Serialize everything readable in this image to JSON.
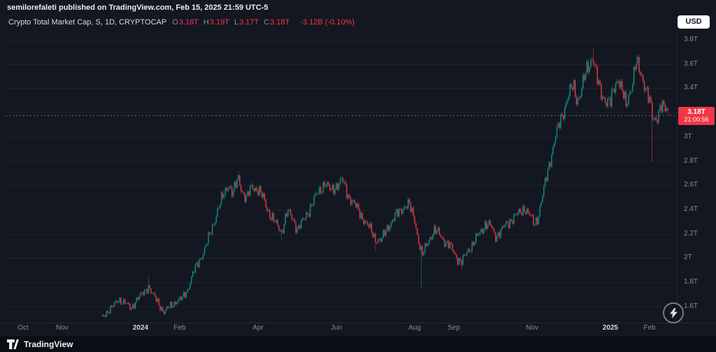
{
  "header": {
    "attribution": "semilorefaleti published on TradingView.com, Feb 15, 2025 21:59 UTC-5"
  },
  "toolbar": {
    "currency_button": "USD"
  },
  "legend": {
    "symbol": "Crypto Total Market Cap, S, 1D, CRYPTOCAP",
    "ohlc": [
      {
        "label": "O",
        "value": "3.18T"
      },
      {
        "label": "H",
        "value": "3.19T"
      },
      {
        "label": "L",
        "value": "3.17T"
      },
      {
        "label": "C",
        "value": "3.18T"
      }
    ],
    "change": "-3.12B (-0.10%)"
  },
  "price_scale": {
    "ticks": [
      {
        "label": "3.8T",
        "v": 3.8
      },
      {
        "label": "3.6T",
        "v": 3.6
      },
      {
        "label": "3.4T",
        "v": 3.4
      },
      {
        "label": "3T",
        "v": 3.0
      },
      {
        "label": "2.8T",
        "v": 2.8
      },
      {
        "label": "2.6T",
        "v": 2.6
      },
      {
        "label": "2.4T",
        "v": 2.4
      },
      {
        "label": "2.2T",
        "v": 2.2
      },
      {
        "label": "2T",
        "v": 2.0
      },
      {
        "label": "1.8T",
        "v": 1.8
      },
      {
        "label": "1.6T",
        "v": 1.6
      }
    ],
    "last": {
      "price": "3.18T",
      "countdown": "21:00:56",
      "value": 3.18
    }
  },
  "time_scale": {
    "ticks": [
      {
        "label": "Oct",
        "m": 0,
        "major": false
      },
      {
        "label": "Nov",
        "m": 1,
        "major": false
      },
      {
        "label": "2024",
        "m": 3,
        "major": true
      },
      {
        "label": "Feb",
        "m": 4,
        "major": false
      },
      {
        "label": "Apr",
        "m": 6,
        "major": false
      },
      {
        "label": "Jun",
        "m": 8,
        "major": false
      },
      {
        "label": "Aug",
        "m": 10,
        "major": false
      },
      {
        "label": "Sep",
        "m": 11,
        "major": false
      },
      {
        "label": "Nov",
        "m": 13,
        "major": false
      },
      {
        "label": "2025",
        "m": 15,
        "major": true
      },
      {
        "label": "Feb",
        "m": 16,
        "major": false
      }
    ]
  },
  "footer": {
    "brand": "TradingView"
  },
  "chart_data": {
    "type": "candlestick",
    "title": "Crypto Total Market Cap, 1D",
    "y_unit": "USD trillions",
    "y_visible_range": [
      1.45,
      3.85
    ],
    "x_visible_range": "Oct 2023 - Feb 2025",
    "colors": {
      "up": "#089981",
      "down": "#f23645",
      "last_price_line": "#787b86",
      "last_price_label_bg": "#f23645"
    },
    "grid_values": [
      3.8,
      3.6,
      3.4,
      3.2,
      3.0,
      2.8,
      2.6,
      2.4,
      2.2,
      2.0,
      1.8,
      1.6
    ],
    "last_candle": {
      "open": 3.18,
      "high": 3.19,
      "low": 3.17,
      "close": 3.18
    },
    "change": {
      "abs": "-3.12B",
      "pct": "-0.10%"
    },
    "anchors": [
      [
        2.0,
        1.5
      ],
      [
        2.15,
        1.56
      ],
      [
        2.3,
        1.6
      ],
      [
        2.45,
        1.66
      ],
      [
        2.6,
        1.63
      ],
      [
        2.75,
        1.58
      ],
      [
        2.9,
        1.66
      ],
      [
        3.05,
        1.7
      ],
      [
        3.2,
        1.77
      ],
      [
        3.3,
        1.7
      ],
      [
        3.45,
        1.63
      ],
      [
        3.6,
        1.55
      ],
      [
        3.75,
        1.6
      ],
      [
        3.9,
        1.64
      ],
      [
        4.05,
        1.66
      ],
      [
        4.2,
        1.74
      ],
      [
        4.35,
        1.88
      ],
      [
        4.5,
        1.98
      ],
      [
        4.65,
        2.08
      ],
      [
        4.8,
        2.22
      ],
      [
        4.95,
        2.38
      ],
      [
        5.1,
        2.5
      ],
      [
        5.25,
        2.62
      ],
      [
        5.35,
        2.52
      ],
      [
        5.5,
        2.66
      ],
      [
        5.6,
        2.55
      ],
      [
        5.7,
        2.48
      ],
      [
        5.85,
        2.6
      ],
      [
        6.0,
        2.56
      ],
      [
        6.15,
        2.48
      ],
      [
        6.3,
        2.36
      ],
      [
        6.45,
        2.28
      ],
      [
        6.6,
        2.22
      ],
      [
        6.75,
        2.38
      ],
      [
        6.9,
        2.32
      ],
      [
        7.0,
        2.24
      ],
      [
        7.15,
        2.3
      ],
      [
        7.3,
        2.4
      ],
      [
        7.5,
        2.52
      ],
      [
        7.7,
        2.62
      ],
      [
        7.85,
        2.55
      ],
      [
        8.0,
        2.6
      ],
      [
        8.15,
        2.64
      ],
      [
        8.3,
        2.52
      ],
      [
        8.5,
        2.42
      ],
      [
        8.7,
        2.32
      ],
      [
        8.85,
        2.24
      ],
      [
        9.0,
        2.16
      ],
      [
        9.15,
        2.14
      ],
      [
        9.3,
        2.25
      ],
      [
        9.5,
        2.34
      ],
      [
        9.7,
        2.42
      ],
      [
        9.85,
        2.44
      ],
      [
        10.0,
        2.32
      ],
      [
        10.12,
        2.1
      ],
      [
        10.2,
        2.02
      ],
      [
        10.35,
        2.15
      ],
      [
        10.5,
        2.22
      ],
      [
        10.65,
        2.2
      ],
      [
        10.8,
        2.12
      ],
      [
        10.95,
        2.08
      ],
      [
        11.1,
        1.99
      ],
      [
        11.2,
        1.96
      ],
      [
        11.35,
        2.06
      ],
      [
        11.5,
        2.12
      ],
      [
        11.65,
        2.2
      ],
      [
        11.8,
        2.28
      ],
      [
        11.95,
        2.26
      ],
      [
        12.05,
        2.18
      ],
      [
        12.2,
        2.22
      ],
      [
        12.35,
        2.28
      ],
      [
        12.5,
        2.33
      ],
      [
        12.65,
        2.36
      ],
      [
        12.8,
        2.42
      ],
      [
        12.95,
        2.34
      ],
      [
        13.05,
        2.28
      ],
      [
        13.15,
        2.34
      ],
      [
        13.3,
        2.56
      ],
      [
        13.45,
        2.8
      ],
      [
        13.6,
        3.0
      ],
      [
        13.75,
        3.16
      ],
      [
        13.9,
        3.32
      ],
      [
        14.05,
        3.42
      ],
      [
        14.15,
        3.3
      ],
      [
        14.25,
        3.38
      ],
      [
        14.4,
        3.55
      ],
      [
        14.55,
        3.68
      ],
      [
        14.65,
        3.48
      ],
      [
        14.75,
        3.36
      ],
      [
        14.9,
        3.3
      ],
      [
        15.0,
        3.28
      ],
      [
        15.1,
        3.4
      ],
      [
        15.2,
        3.5
      ],
      [
        15.3,
        3.38
      ],
      [
        15.4,
        3.24
      ],
      [
        15.55,
        3.45
      ],
      [
        15.65,
        3.62
      ],
      [
        15.75,
        3.52
      ],
      [
        15.9,
        3.42
      ],
      [
        16.0,
        3.3
      ],
      [
        16.08,
        3.12
      ],
      [
        16.18,
        3.15
      ],
      [
        16.28,
        3.28
      ],
      [
        16.38,
        3.22
      ],
      [
        16.5,
        3.18
      ]
    ],
    "spikes": [
      {
        "m": 3.2,
        "high": 1.85
      },
      {
        "m": 5.5,
        "high": 2.72
      },
      {
        "m": 6.6,
        "low": 2.15
      },
      {
        "m": 9.0,
        "low": 2.06
      },
      {
        "m": 10.17,
        "low": 1.75
      },
      {
        "m": 11.2,
        "low": 1.9
      },
      {
        "m": 14.55,
        "high": 3.73
      },
      {
        "m": 15.65,
        "high": 3.67
      },
      {
        "m": 16.08,
        "low": 2.79
      }
    ]
  }
}
